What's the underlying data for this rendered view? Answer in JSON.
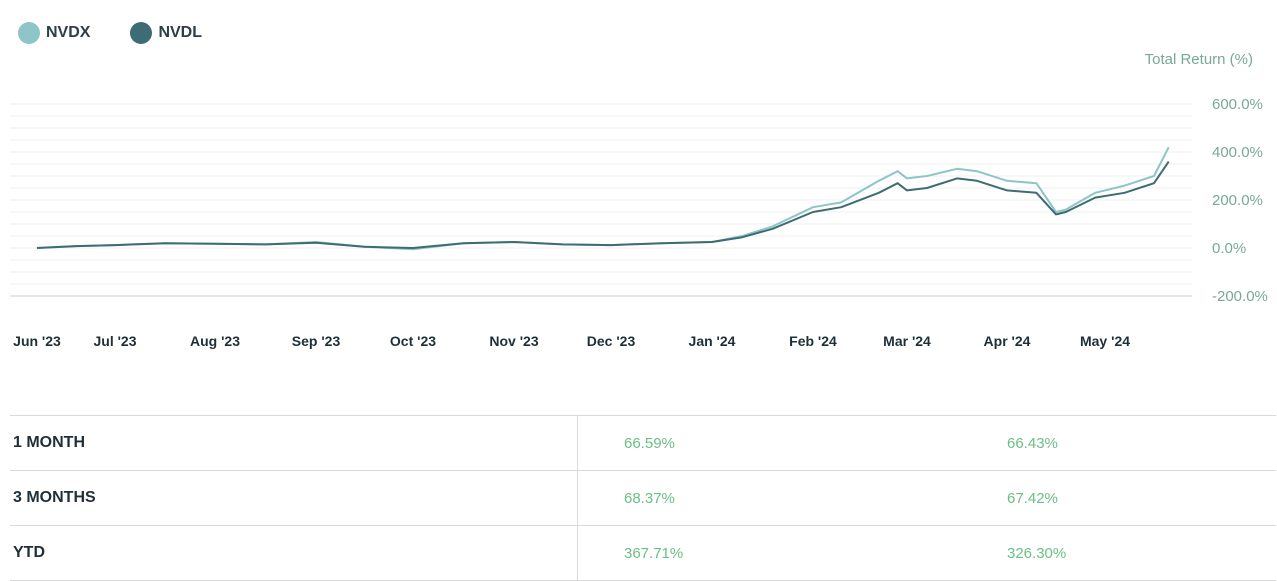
{
  "legend": [
    {
      "label": "NVDX",
      "color": "#8ec5c8"
    },
    {
      "label": "NVDL",
      "color": "#3d6c74"
    }
  ],
  "chart_data": {
    "type": "line",
    "ylabel": "Total Return (%)",
    "y_ticks": [
      "600.0%",
      "400.0%",
      "200.0%",
      "0.0%",
      "-200.0%"
    ],
    "ylim": [
      -200,
      600
    ],
    "x_ticks": [
      "Jun '23",
      "Jul '23",
      "Aug '23",
      "Sep '23",
      "Oct '23",
      "Nov '23",
      "Dec '23",
      "Jan '24",
      "Feb '24",
      "Mar '24",
      "Apr '24",
      "May '24"
    ],
    "grid": true,
    "legend_position": "top-left",
    "x": [
      0,
      0.5,
      1,
      1.5,
      2,
      2.5,
      3,
      3.5,
      4,
      4.5,
      5,
      5.5,
      6,
      6.5,
      7,
      7.3,
      7.6,
      8,
      8.3,
      8.7,
      8.9,
      9.0,
      9.2,
      9.5,
      9.7,
      10,
      10.3,
      10.5,
      10.6,
      10.9,
      11.2,
      11.5,
      11.65
    ],
    "series": [
      {
        "name": "NVDX",
        "color": "#8ec5c8",
        "values": [
          0,
          8,
          12,
          20,
          18,
          15,
          25,
          5,
          -5,
          20,
          25,
          15,
          12,
          20,
          25,
          50,
          90,
          170,
          190,
          280,
          320,
          290,
          300,
          330,
          320,
          280,
          270,
          150,
          160,
          230,
          260,
          300,
          420
        ]
      },
      {
        "name": "NVDL",
        "color": "#3d6c74",
        "values": [
          0,
          8,
          12,
          20,
          18,
          15,
          22,
          5,
          0,
          20,
          25,
          15,
          12,
          20,
          25,
          45,
          80,
          150,
          170,
          230,
          270,
          240,
          250,
          290,
          280,
          240,
          230,
          140,
          150,
          210,
          230,
          270,
          360
        ]
      }
    ]
  },
  "table": {
    "rows": [
      {
        "period": "1 MONTH",
        "v1": "66.59%",
        "v2": "66.43%"
      },
      {
        "period": "3 MONTHS",
        "v1": "68.37%",
        "v2": "67.42%"
      },
      {
        "period": "YTD",
        "v1": "367.71%",
        "v2": "326.30%"
      }
    ]
  }
}
